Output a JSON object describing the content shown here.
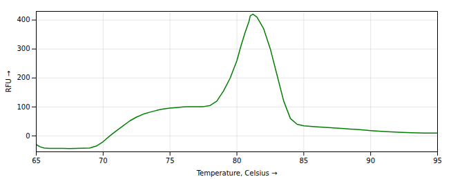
{
  "chart_data": {
    "type": "line",
    "xlabel": "Temperature, Celsius",
    "ylabel": "RFU",
    "color": "#008000",
    "grid": true,
    "xlim": [
      65,
      95
    ],
    "ylim": [
      -55,
      430
    ],
    "xticks": [
      65,
      70,
      75,
      80,
      85,
      90,
      95
    ],
    "yticks": [
      0,
      100,
      200,
      300,
      400
    ],
    "x": [
      65.0,
      65.3,
      65.6,
      66.0,
      66.5,
      67.0,
      67.5,
      68.0,
      68.5,
      69.0,
      69.5,
      70.0,
      70.5,
      71.0,
      71.5,
      72.0,
      72.5,
      73.0,
      73.5,
      74.0,
      74.5,
      75.0,
      75.5,
      76.0,
      76.5,
      77.0,
      77.5,
      78.0,
      78.5,
      79.0,
      79.5,
      80.0,
      80.3,
      80.6,
      80.9,
      81.0,
      81.2,
      81.5,
      82.0,
      82.5,
      83.0,
      83.5,
      84.0,
      84.5,
      85.0,
      85.5,
      86.0,
      87.0,
      88.0,
      89.0,
      90.0,
      91.0,
      92.0,
      93.0,
      94.0,
      95.0
    ],
    "values": [
      -30.0,
      -38.0,
      -42.0,
      -43.0,
      -43.0,
      -43.0,
      -43.5,
      -43.0,
      -42.5,
      -42.0,
      -35.0,
      -20.0,
      0.0,
      18.0,
      35.0,
      52.0,
      65.0,
      75.0,
      82.0,
      88.0,
      93.0,
      96.0,
      98.0,
      100.0,
      100.5,
      101.0,
      101.0,
      105.0,
      120.0,
      155.0,
      200.0,
      260.0,
      310.0,
      355.0,
      395.0,
      415.0,
      420.0,
      410.0,
      370.0,
      300.0,
      210.0,
      120.0,
      60.0,
      40.0,
      35.0,
      33.0,
      31.0,
      28.0,
      25.0,
      22.0,
      18.0,
      15.0,
      13.0,
      11.0,
      10.0,
      10.0
    ]
  }
}
